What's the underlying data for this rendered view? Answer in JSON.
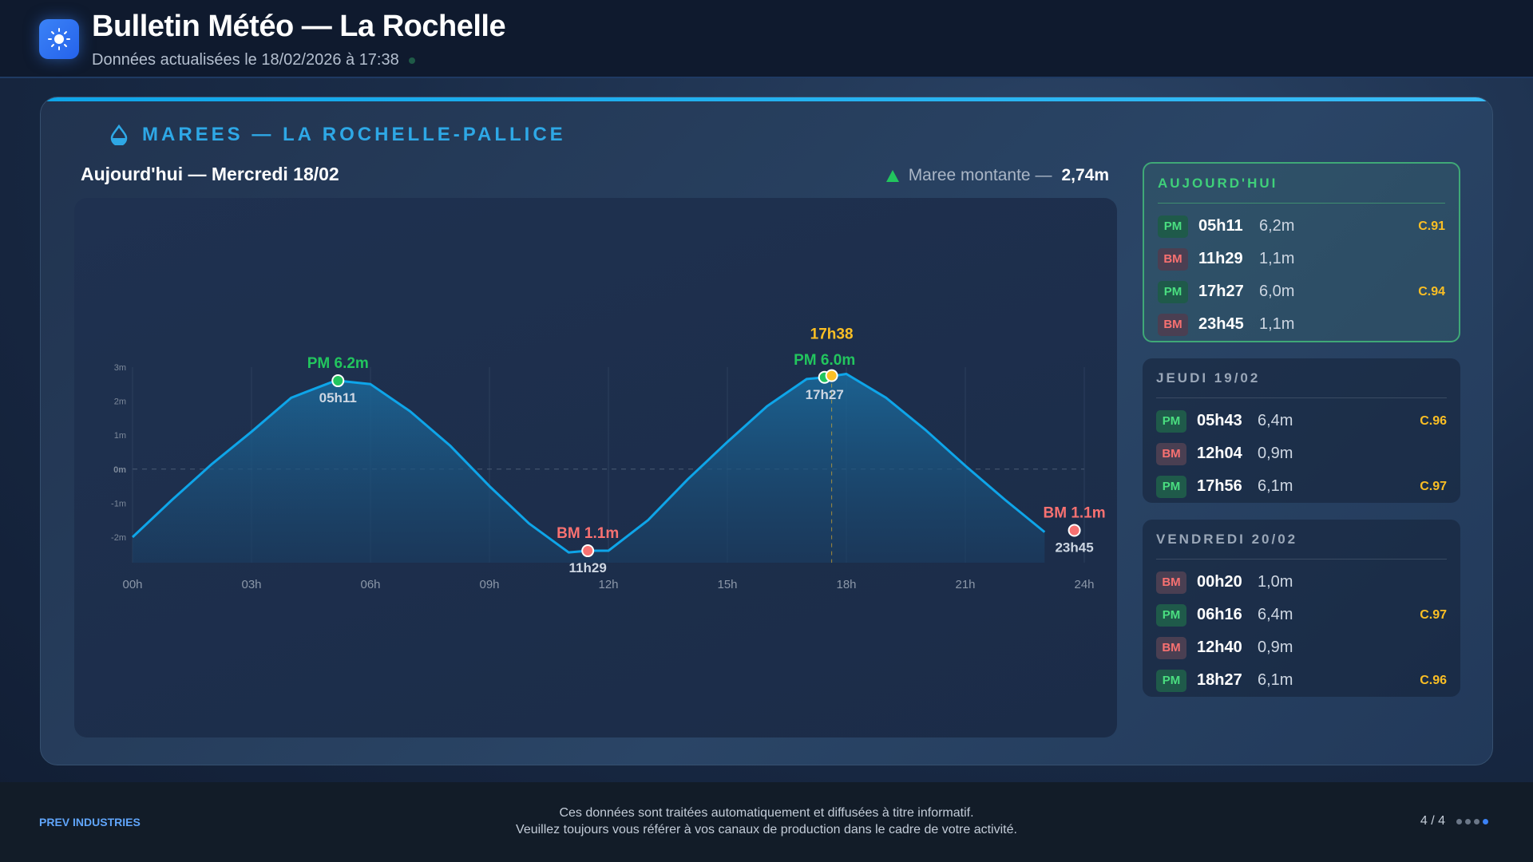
{
  "header": {
    "title": "Bulletin Météo — La Rochelle",
    "subtitle": "Données actualisées le 18/02/2026 à 17:38",
    "icon": "sun-icon"
  },
  "section": {
    "title": "MAREES — LA ROCHELLE-PALLICE",
    "icon": "water-drop-icon",
    "day_title": "Aujourd'hui — Mercredi 18/02",
    "trend_label": "Maree montante —",
    "trend_value": "2,74m",
    "trend_color": "#22c55e"
  },
  "chart_data": {
    "type": "area",
    "x_ticks": [
      "00h",
      "03h",
      "06h",
      "09h",
      "12h",
      "15h",
      "18h",
      "21h",
      "24h"
    ],
    "y_ticks": [
      "3m",
      "2m",
      "1m",
      "0m",
      "-1m",
      "-2m"
    ],
    "xlim": [
      0,
      24
    ],
    "ylim": [
      -2.75,
      3
    ],
    "series": [
      {
        "x": [
          0,
          1,
          2,
          3,
          4,
          5,
          5.18,
          6,
          7,
          8,
          9,
          10,
          11,
          11.48,
          12,
          13,
          14,
          15,
          16,
          17,
          17.45,
          18,
          19,
          20,
          21,
          22,
          23
        ],
        "y": [
          -2.0,
          -0.9,
          0.15,
          1.1,
          2.1,
          2.55,
          2.6,
          2.5,
          1.7,
          0.7,
          -0.5,
          -1.6,
          -2.45,
          -2.4,
          -2.4,
          -1.5,
          -0.3,
          0.8,
          1.85,
          2.65,
          2.7,
          2.8,
          2.1,
          1.15,
          0.1,
          -0.9,
          -1.85
        ],
        "color": "#0ea5e9"
      }
    ],
    "markers": [
      {
        "type": "PM",
        "x": 5.18,
        "y": 2.6,
        "label": "PM 6.2m",
        "time": "05h11",
        "color": "#22c55e"
      },
      {
        "type": "BM",
        "x": 11.48,
        "y": -2.4,
        "label": "BM 1.1m",
        "time": "11h29",
        "color": "#f87171"
      },
      {
        "type": "PM",
        "x": 17.45,
        "y": 2.7,
        "label": "PM 6.0m",
        "time": "17h27",
        "color": "#22c55e"
      },
      {
        "type": "BM",
        "x": 23.75,
        "y": -1.8,
        "label": "BM 1.1m",
        "time": "23h45",
        "color": "#f87171"
      }
    ],
    "now": {
      "x": 17.63,
      "y": 2.75,
      "label": "17h38",
      "color": "#fbbf24"
    }
  },
  "cards": [
    {
      "title": "AUJOURD'HUI",
      "rows": [
        {
          "type": "PM",
          "time": "05h11",
          "height": "6,2m",
          "coef": "C.91"
        },
        {
          "type": "BM",
          "time": "11h29",
          "height": "1,1m",
          "coef": ""
        },
        {
          "type": "PM",
          "time": "17h27",
          "height": "6,0m",
          "coef": "C.94"
        },
        {
          "type": "BM",
          "time": "23h45",
          "height": "1,1m",
          "coef": ""
        }
      ]
    },
    {
      "title": "JEUDI 19/02",
      "rows": [
        {
          "type": "PM",
          "time": "05h43",
          "height": "6,4m",
          "coef": "C.96"
        },
        {
          "type": "BM",
          "time": "12h04",
          "height": "0,9m",
          "coef": ""
        },
        {
          "type": "PM",
          "time": "17h56",
          "height": "6,1m",
          "coef": "C.97"
        }
      ]
    },
    {
      "title": "VENDREDI 20/02",
      "rows": [
        {
          "type": "BM",
          "time": "00h20",
          "height": "1,0m",
          "coef": ""
        },
        {
          "type": "PM",
          "time": "06h16",
          "height": "6,4m",
          "coef": "C.97"
        },
        {
          "type": "BM",
          "time": "12h40",
          "height": "0,9m",
          "coef": ""
        },
        {
          "type": "PM",
          "time": "18h27",
          "height": "6,1m",
          "coef": "C.96"
        }
      ]
    }
  ],
  "footer": {
    "brand": "PREV INDUSTRIES",
    "line1": "Ces données sont traitées automatiquement et diffusées à titre informatif.",
    "line2": "Veuillez toujours vous référer à vos canaux de production dans le cadre de votre activité.",
    "page": "4 / 4",
    "pages_total": 4,
    "page_current": 4
  }
}
